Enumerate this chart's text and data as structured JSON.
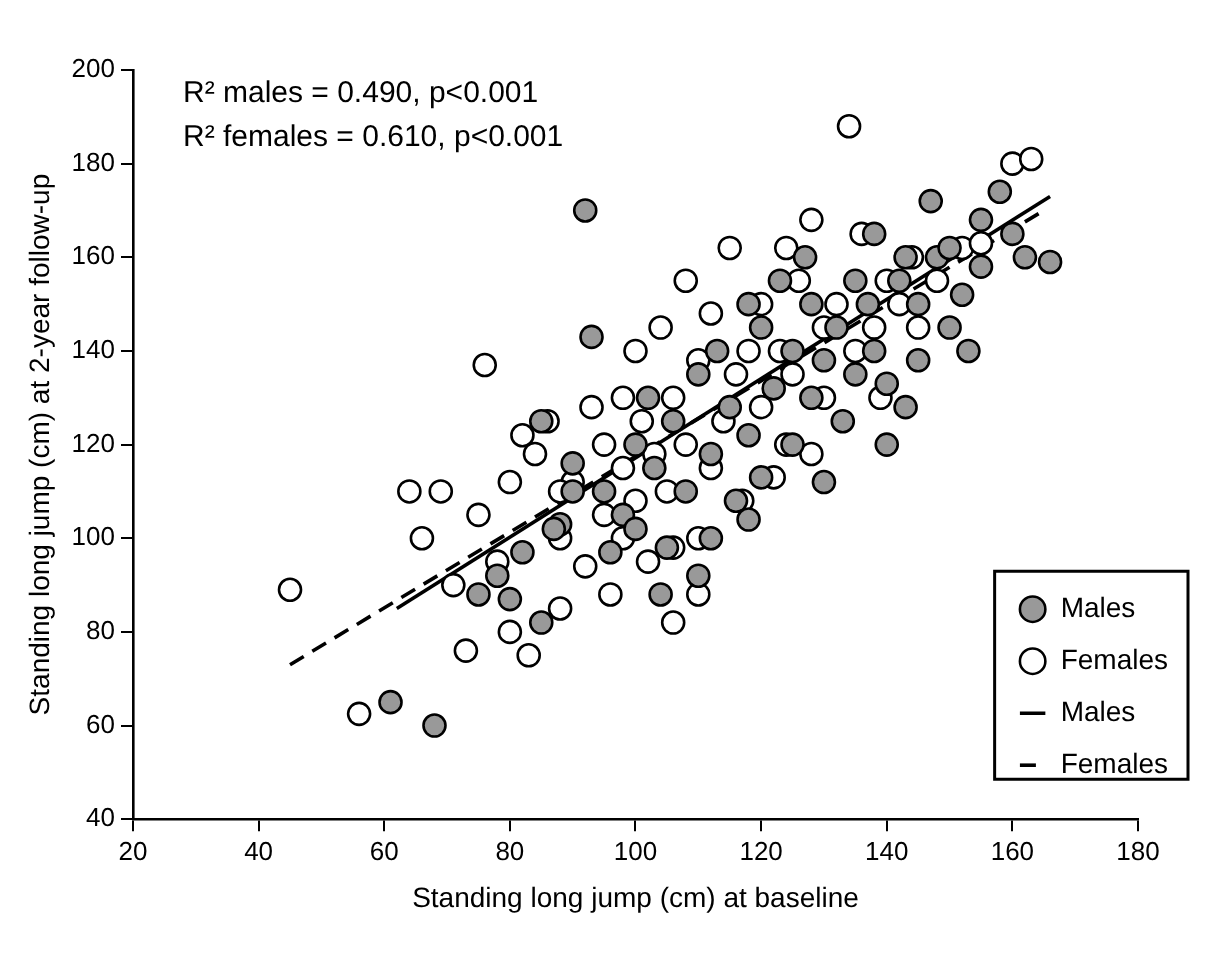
{
  "chart_data": {
    "type": "scatter",
    "xlabel": "Standing long jump (cm) at baseline",
    "ylabel": "Standing long jump (cm) at 2-year follow-up",
    "xlim": [
      20,
      180
    ],
    "xticks": [
      20,
      40,
      60,
      80,
      100,
      120,
      140,
      160,
      180
    ],
    "ylim": [
      40,
      200
    ],
    "yticks": [
      40,
      60,
      80,
      100,
      120,
      140,
      160,
      180,
      200
    ],
    "grid": false,
    "legend": "bottom right",
    "marker": "circle",
    "annotations": [
      "R² males = 0.490, p<0.001",
      "R² females = 0.610, p<0.001"
    ],
    "series": [
      {
        "name": "Males",
        "color": "#999999",
        "type": "scatter",
        "marker": "circle",
        "x": [
          61,
          68,
          75,
          78,
          80,
          82,
          85,
          88,
          90,
          92,
          93,
          95,
          96,
          98,
          100,
          100,
          102,
          103,
          105,
          106,
          108,
          110,
          110,
          112,
          113,
          115,
          116,
          118,
          118,
          120,
          120,
          122,
          123,
          125,
          125,
          127,
          128,
          128,
          130,
          130,
          132,
          133,
          135,
          135,
          137,
          138,
          138,
          140,
          140,
          142,
          143,
          143,
          145,
          145,
          147,
          148,
          150,
          150,
          152,
          153,
          155,
          155,
          158,
          160,
          162,
          166,
          112,
          104,
          118,
          87,
          85,
          90
        ],
        "values": [
          65,
          60,
          88,
          92,
          87,
          97,
          82,
          103,
          116,
          170,
          143,
          110,
          97,
          105,
          120,
          102,
          130,
          115,
          98,
          125,
          110,
          92,
          135,
          118,
          140,
          128,
          108,
          150,
          122,
          145,
          113,
          132,
          155,
          140,
          120,
          160,
          150,
          130,
          112,
          138,
          145,
          125,
          155,
          135,
          150,
          165,
          140,
          120,
          133,
          155,
          160,
          128,
          150,
          138,
          172,
          160,
          162,
          145,
          152,
          140,
          168,
          158,
          174,
          165,
          160,
          159,
          100,
          88,
          104,
          102,
          125,
          110
        ]
      },
      {
        "name": "Females",
        "color": "#ffffff",
        "type": "scatter",
        "marker": "circle",
        "x": [
          45,
          56,
          64,
          66,
          69,
          71,
          73,
          76,
          75,
          78,
          80,
          80,
          82,
          83,
          84,
          86,
          88,
          88,
          90,
          92,
          93,
          95,
          95,
          96,
          98,
          98,
          100,
          100,
          101,
          102,
          103,
          104,
          105,
          106,
          106,
          108,
          108,
          110,
          110,
          112,
          112,
          114,
          115,
          116,
          117,
          118,
          120,
          120,
          122,
          123,
          124,
          125,
          126,
          128,
          128,
          130,
          130,
          132,
          134,
          135,
          136,
          138,
          139,
          140,
          142,
          144,
          145,
          148,
          152,
          155,
          160,
          163,
          124,
          98,
          106,
          110,
          88
        ],
        "values": [
          89,
          62.5,
          110,
          100,
          110,
          90,
          76,
          137,
          105,
          95,
          112,
          80,
          122,
          75,
          118,
          125,
          100,
          85,
          112,
          94,
          128,
          120,
          105,
          88,
          130,
          115,
          108,
          140,
          125,
          95,
          118,
          145,
          110,
          82,
          130,
          155,
          120,
          100,
          138,
          115,
          148,
          125,
          162,
          135,
          108,
          140,
          128,
          150,
          113,
          140,
          162,
          135,
          155,
          118,
          168,
          145,
          130,
          150,
          188,
          140,
          165,
          145,
          130,
          155,
          150,
          160,
          145,
          155,
          162,
          163,
          180,
          181,
          120,
          100,
          98,
          88,
          110
        ]
      },
      {
        "name": "Males",
        "color": "#000000",
        "type": "line",
        "marker": "none",
        "line_style": "solid",
        "x": [
          62,
          166
        ],
        "values": [
          85,
          173
        ]
      },
      {
        "name": "Females",
        "color": "#000000",
        "type": "line",
        "marker": "none",
        "line_style": "dashed",
        "x": [
          45,
          165
        ],
        "values": [
          73,
          170
        ]
      }
    ]
  }
}
